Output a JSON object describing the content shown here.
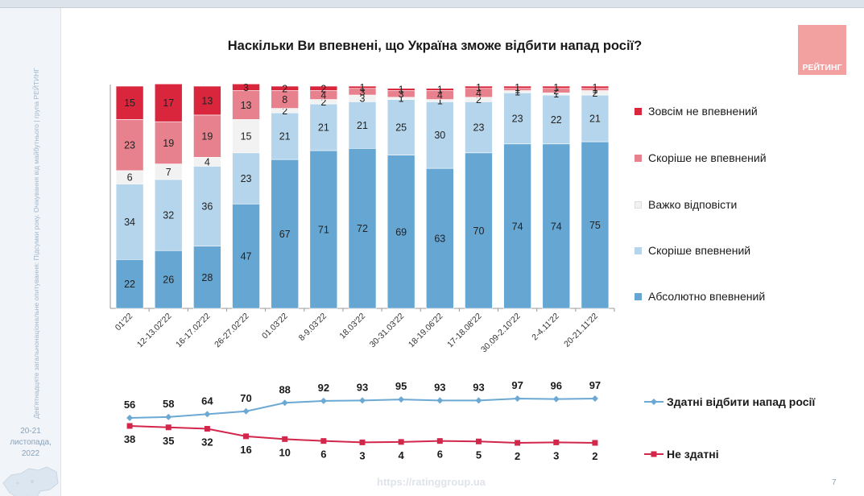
{
  "sidebar": {
    "note": "Дев'ятнадцяте загальнонаціональне опитування: Підсумки року. Очікування від майбутнього | група РЕЙТИНГ",
    "date": "20-21\nлистопада, 2022"
  },
  "logo": {
    "text": "РЕЙТИНГ"
  },
  "footer": {
    "url": "https://ratinggroup.ua",
    "page": "7"
  },
  "colors": {
    "absolutely": "#66a6d3",
    "rather_confident": "#b5d5ec",
    "hard": "#f2f2f2",
    "rather_not": "#e8818e",
    "not_at_all": "#d9263c",
    "able_line": "#6ba9d4",
    "unable_line": "#d3264b"
  },
  "chart_data": [
    {
      "type": "bar",
      "stacked": true,
      "title": "Наскільки Ви впевнені, що Україна зможе відбити напад росії?",
      "categories": [
        "01'22",
        "12-13.02'22",
        "16-17.02'22",
        "26-27.02'22",
        "01.03'22",
        "8-9.03'22",
        "18.03'22",
        "30-31.03'22",
        "18-19.06'22",
        "17-18.08'22",
        "30.09-2.10'22",
        "2-4.11'22",
        "20-21.11'22"
      ],
      "series": [
        {
          "key": "absolutely",
          "name": "Абсолютно впевнений",
          "values": [
            22,
            26,
            28,
            47,
            67,
            71,
            72,
            69,
            63,
            70,
            74,
            74,
            75
          ]
        },
        {
          "key": "rather_confident",
          "name": "Скоріше впевнений",
          "values": [
            34,
            32,
            36,
            23,
            21,
            21,
            21,
            25,
            30,
            23,
            23,
            22,
            21
          ]
        },
        {
          "key": "hard",
          "name": "Важко відповісти",
          "values": [
            6,
            7,
            4,
            15,
            2,
            2,
            3,
            1,
            1,
            2,
            1,
            1,
            2
          ]
        },
        {
          "key": "rather_not",
          "name": "Скоріше не впевнений",
          "values": [
            23,
            19,
            19,
            13,
            8,
            4,
            3,
            3,
            4,
            4,
            1,
            2,
            1
          ]
        },
        {
          "key": "not_at_all",
          "name": "Зовсім не впевнений",
          "values": [
            15,
            17,
            13,
            3,
            2,
            2,
            1,
            1,
            1,
            1,
            1,
            1,
            1
          ]
        }
      ],
      "legend_position": "right",
      "ylim": [
        0,
        100
      ]
    },
    {
      "type": "line",
      "categories": [
        "01'22",
        "12-13.02'22",
        "16-17.02'22",
        "26-27.02'22",
        "01.03'22",
        "8-9.03'22",
        "18.03'22",
        "30-31.03'22",
        "18-19.06'22",
        "17-18.08'22",
        "30.09-2.10'22",
        "2-4.11'22",
        "20-21.11'22"
      ],
      "series": [
        {
          "key": "able",
          "name": "Здатні відбити напад росії",
          "values": [
            56,
            58,
            64,
            70,
            88,
            92,
            93,
            95,
            93,
            93,
            97,
            96,
            97
          ]
        },
        {
          "key": "unable",
          "name": "Не здатні",
          "values": [
            38,
            35,
            32,
            16,
            10,
            6,
            3,
            4,
            6,
            5,
            2,
            3,
            2
          ]
        }
      ],
      "legend_position": "right"
    }
  ]
}
